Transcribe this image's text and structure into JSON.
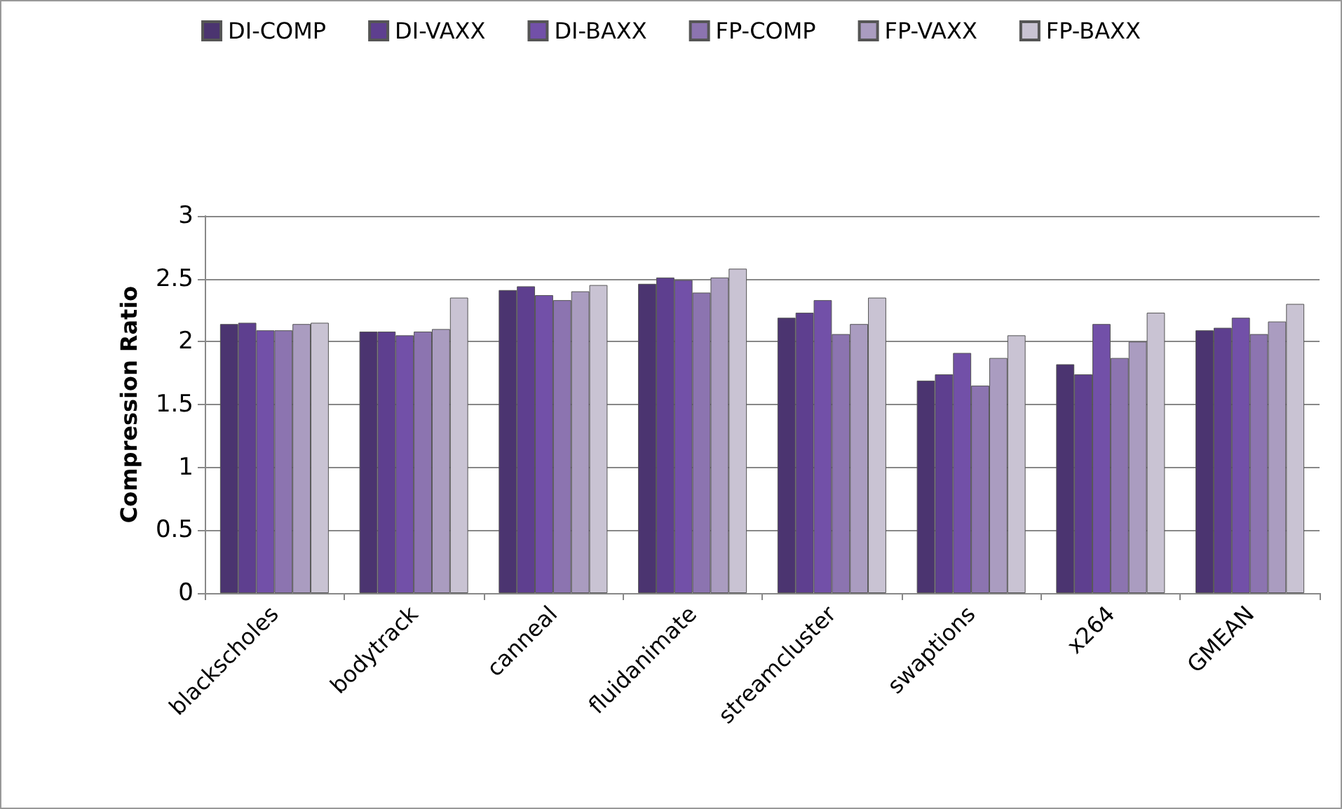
{
  "chart_data": {
    "type": "bar",
    "ylabel": "Compression Ratio",
    "categories": [
      "blackscholes",
      "bodytrack",
      "canneal",
      "fluidanimate",
      "streamcluster",
      "swaptions",
      "x264",
      "GMEAN"
    ],
    "series": [
      {
        "name": "DI-COMP",
        "color": "#4b3470",
        "values": [
          2.14,
          2.08,
          2.41,
          2.46,
          2.19,
          1.69,
          1.82,
          2.09
        ]
      },
      {
        "name": "DI-VAXX",
        "color": "#5e3f8f",
        "values": [
          2.15,
          2.08,
          2.44,
          2.51,
          2.23,
          1.74,
          1.74,
          2.11
        ]
      },
      {
        "name": "DI-BAXX",
        "color": "#7250a8",
        "values": [
          2.09,
          2.05,
          2.37,
          2.49,
          2.33,
          1.91,
          2.14,
          2.19
        ]
      },
      {
        "name": "FP-COMP",
        "color": "#8c74b0",
        "values": [
          2.09,
          2.08,
          2.33,
          2.39,
          2.06,
          1.65,
          1.87,
          2.06
        ]
      },
      {
        "name": "FP-VAXX",
        "color": "#aa9cc0",
        "values": [
          2.14,
          2.1,
          2.4,
          2.51,
          2.14,
          1.87,
          2.0,
          2.16
        ]
      },
      {
        "name": "FP-BAXX",
        "color": "#c9c3d3",
        "values": [
          2.15,
          2.35,
          2.45,
          2.58,
          2.35,
          2.05,
          2.23,
          2.3
        ]
      }
    ],
    "ylim": [
      0,
      3
    ],
    "yticks": [
      0,
      0.5,
      1,
      1.5,
      2,
      2.5,
      3
    ],
    "grid": "y",
    "legend": "top"
  }
}
